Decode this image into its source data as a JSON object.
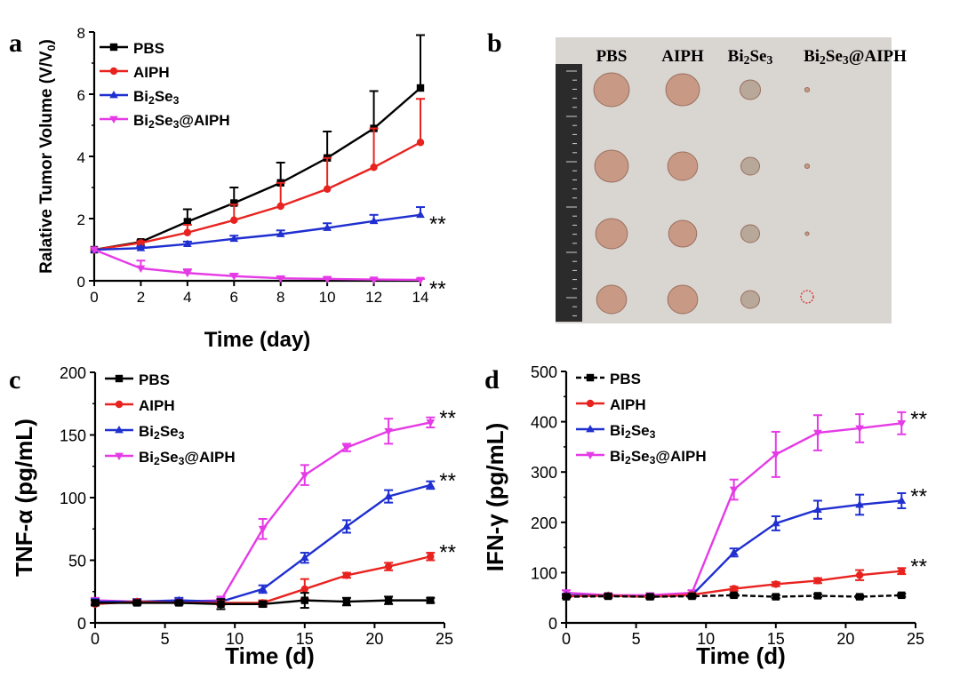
{
  "panels": [
    {
      "letter": "a"
    },
    {
      "letter": "b"
    },
    {
      "letter": "c"
    },
    {
      "letter": "d"
    }
  ],
  "photo": {
    "column_labels": [
      "PBS",
      "AIPH",
      "Bi2Se3",
      "Bi2Se3@AIPH"
    ],
    "ruler_color": "#2b2b2b",
    "background_color": "#d9d5d1",
    "tumor_color": "#c89a86",
    "circle_color": "#e02020"
  },
  "colors": {
    "PBS": "#000000",
    "AIPH": "#e8231f",
    "Bi2Se3": "#1f2fd0",
    "Bi2Se3@AIPH": "#e53be6"
  },
  "chart_data": [
    {
      "type": "line",
      "xlabel": "Time (day)",
      "ylabel": "Ralative Tumor Volume (V/V0)",
      "xlim": [
        0,
        14
      ],
      "ylim": [
        0,
        8
      ],
      "xticks": [
        0,
        2,
        4,
        6,
        8,
        10,
        12,
        14
      ],
      "yticks": [
        0,
        2,
        4,
        6,
        8
      ],
      "legend_position": "top-left",
      "x": [
        0,
        2,
        4,
        6,
        8,
        10,
        12,
        14
      ],
      "series": [
        {
          "name": "PBS",
          "marker": "square",
          "values": [
            1,
            1.25,
            1.9,
            2.5,
            3.15,
            3.95,
            4.9,
            6.2
          ],
          "errors": [
            0,
            0.05,
            0.4,
            0.5,
            0.65,
            0.85,
            1.2,
            1.7
          ]
        },
        {
          "name": "AIPH",
          "marker": "circle",
          "values": [
            1,
            1.22,
            1.55,
            1.95,
            2.4,
            2.95,
            3.65,
            4.45
          ],
          "errors": [
            0,
            0.05,
            0.25,
            0.5,
            0.75,
            1.0,
            1.25,
            1.4
          ]
        },
        {
          "name": "Bi2Se3",
          "marker": "triangle-up",
          "values": [
            1,
            1.05,
            1.18,
            1.35,
            1.5,
            1.7,
            1.92,
            2.12
          ],
          "errors": [
            0,
            0.05,
            0.08,
            0.1,
            0.12,
            0.15,
            0.2,
            0.25
          ]
        },
        {
          "name": "Bi2Se3@AIPH",
          "marker": "triangle-down",
          "values": [
            1,
            0.4,
            0.25,
            0.15,
            0.08,
            0.06,
            0.04,
            0.03
          ],
          "errors": [
            0,
            0.25,
            0.12,
            0.08,
            0.05,
            0.04,
            0.03,
            0.03
          ]
        }
      ],
      "annotations": [
        {
          "text": "**",
          "series": "Bi2Se3"
        },
        {
          "text": "**",
          "series": "Bi2Se3@AIPH"
        }
      ]
    },
    {
      "type": "line",
      "xlabel": "Time (d)",
      "ylabel": "TNF-α (pg/mL)",
      "xlim": [
        0,
        25
      ],
      "ylim": [
        0,
        200
      ],
      "xticks": [
        0,
        5,
        10,
        15,
        20,
        25
      ],
      "yticks": [
        0,
        50,
        100,
        150,
        200
      ],
      "legend_position": "top-left",
      "x": [
        0,
        3,
        6,
        9,
        12,
        15,
        18,
        21,
        24
      ],
      "series": [
        {
          "name": "PBS",
          "marker": "square",
          "values": [
            16,
            16,
            16,
            15,
            15,
            18,
            17,
            18,
            18
          ],
          "errors": [
            2,
            1.5,
            1.5,
            4,
            2,
            6,
            3,
            3,
            2
          ]
        },
        {
          "name": "AIPH",
          "marker": "circle",
          "values": [
            15,
            17,
            16,
            16,
            16,
            27,
            38,
            45,
            53
          ],
          "errors": [
            1,
            1,
            1,
            2,
            2,
            8,
            2,
            3,
            3
          ]
        },
        {
          "name": "Bi2Se3",
          "marker": "triangle-up",
          "values": [
            17,
            17,
            18,
            17,
            27,
            52,
            77,
            101,
            110
          ],
          "errors": [
            2,
            2,
            2,
            2,
            3,
            4,
            5,
            5,
            3
          ]
        },
        {
          "name": "Bi2Se3@AIPH",
          "marker": "triangle-down",
          "values": [
            18,
            17,
            17,
            18,
            75,
            118,
            140,
            153,
            160
          ],
          "errors": [
            2,
            2,
            2,
            3,
            8,
            8,
            3,
            10,
            4
          ]
        }
      ],
      "annotations": [
        {
          "text": "**",
          "series": "Bi2Se3@AIPH"
        },
        {
          "text": "**",
          "series": "Bi2Se3"
        },
        {
          "text": "**",
          "series": "AIPH"
        }
      ]
    },
    {
      "type": "line",
      "xlabel": "Time (d)",
      "ylabel": "IFN-γ (pg/mL)",
      "xlim": [
        0,
        25
      ],
      "ylim": [
        0,
        500
      ],
      "xticks": [
        0,
        5,
        10,
        15,
        20,
        25
      ],
      "yticks": [
        0,
        100,
        200,
        300,
        400,
        500
      ],
      "legend_position": "top-left",
      "x": [
        0,
        3,
        6,
        9,
        12,
        15,
        18,
        21,
        24
      ],
      "series": [
        {
          "name": "PBS",
          "marker": "square",
          "values": [
            52,
            53,
            52,
            53,
            55,
            52,
            54,
            52,
            55
          ],
          "errors": [
            3,
            3,
            3,
            3,
            3,
            3,
            3,
            3,
            3
          ]
        },
        {
          "name": "AIPH",
          "marker": "circle",
          "values": [
            53,
            54,
            52,
            56,
            68,
            77,
            84,
            95,
            103
          ],
          "errors": [
            3,
            3,
            3,
            3,
            4,
            4,
            5,
            10,
            6
          ]
        },
        {
          "name": "Bi2Se3",
          "marker": "triangle-up",
          "values": [
            55,
            54,
            52,
            55,
            140,
            198,
            225,
            235,
            243
          ],
          "errors": [
            3,
            3,
            3,
            3,
            8,
            14,
            18,
            20,
            15
          ]
        },
        {
          "name": "Bi2Se3@AIPH",
          "marker": "triangle-down",
          "values": [
            60,
            55,
            55,
            60,
            265,
            335,
            378,
            387,
            397
          ],
          "errors": [
            5,
            4,
            4,
            5,
            20,
            45,
            35,
            28,
            22
          ]
        }
      ],
      "annotations": [
        {
          "text": "**",
          "series": "Bi2Se3@AIPH"
        },
        {
          "text": "**",
          "series": "Bi2Se3"
        },
        {
          "text": "**",
          "series": "AIPH"
        }
      ]
    }
  ]
}
